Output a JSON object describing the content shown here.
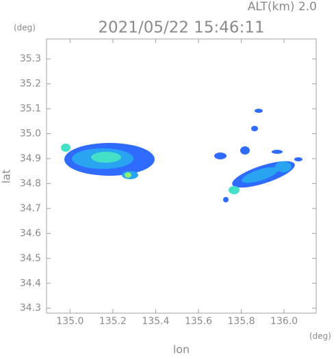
{
  "chart_data": {
    "type": "image",
    "title": "2021/05/22 15:46:11",
    "subtitle": "ALT(km) 2.0",
    "y_unit": "(deg)",
    "x_unit": "(deg)",
    "x_label": "lon",
    "y_label": "lat",
    "xlim": [
      134.89,
      136.15
    ],
    "ylim": [
      34.28,
      35.38
    ],
    "xticks": [
      {
        "value": 135,
        "label": "135.0"
      },
      135.2,
      135.4,
      135.6,
      135.8,
      {
        "value": 136,
        "label": "136.0"
      }
    ],
    "yticks": [
      34.3,
      34.4,
      34.5,
      34.6,
      34.7,
      34.8,
      34.9,
      {
        "value": 35,
        "label": "35.0"
      },
      35.1,
      35.2,
      35.3
    ]
  }
}
